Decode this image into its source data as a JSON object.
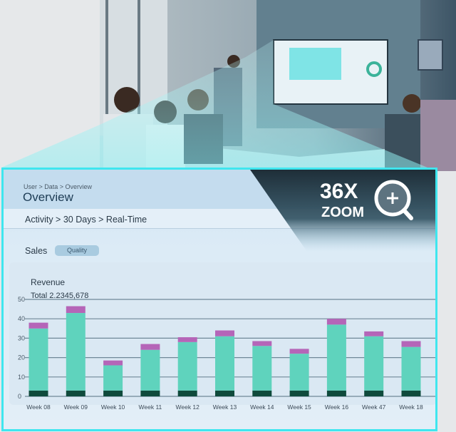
{
  "badge": {
    "magnification": "36X",
    "label": "ZOOM",
    "icon": "zoom-in-magnifier-icon"
  },
  "header": {
    "breadcrumb": "User > Data > Overview",
    "title": "Overview",
    "filter_path": "Activity > 30 Days > Real-Time"
  },
  "tabs": {
    "sales": "Sales",
    "quality": "Quality"
  },
  "colors": {
    "accent": "#3fe6ef",
    "bar_main": "#5fd3bd",
    "bar_base": "#0f4a3c",
    "bar_top": "#b565b8"
  },
  "chart_data": {
    "type": "bar",
    "stacked": true,
    "title": "Revenue",
    "subtitle": "Total  2.2345,678",
    "ylim": [
      0,
      50
    ],
    "yticks": [
      0,
      10,
      20,
      30,
      40,
      50
    ],
    "grid": true,
    "categories": [
      "Week 08",
      "Week 09",
      "Week 10",
      "Week 11",
      "Week 12",
      "Week 13",
      "Week 14",
      "Week 15",
      "Week 16",
      "Week 47",
      "Week 18"
    ],
    "series": [
      {
        "values": [
          3,
          3,
          3,
          3,
          3,
          3,
          3,
          3,
          3,
          3,
          3
        ]
      },
      {
        "values": [
          32,
          40,
          13,
          21,
          25,
          28,
          23,
          19,
          34,
          28,
          22.5
        ]
      },
      {
        "values": [
          3,
          3.5,
          2.5,
          3,
          2.5,
          3,
          2.5,
          2.5,
          3,
          2.5,
          3
        ]
      }
    ]
  }
}
